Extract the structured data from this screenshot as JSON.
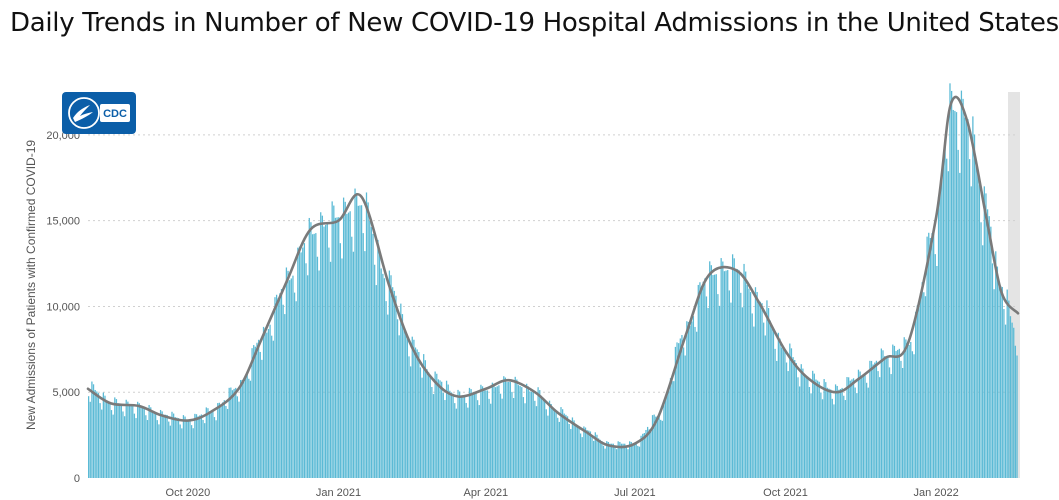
{
  "page": {
    "title": "Daily Trends in Number of New COVID-19 Hospital Admissions in the United States",
    "logo_text": "CDC"
  },
  "colors": {
    "bars": "#5bbad5",
    "line": "#7a7a7a",
    "grid": "#d0d0d0",
    "axis_text": "#555555",
    "logo_blue": "#0b5ea8",
    "right_band": "#e4e4e4"
  },
  "chart_data": {
    "type": "bar",
    "title": "Daily Trends in Number of New COVID-19 Hospital Admissions in the United States",
    "xlabel": "",
    "ylabel": "New Admissions of Patients with Confirmed COVID-19",
    "ylim": [
      0,
      22500
    ],
    "grid": true,
    "x_range": [
      "2020-08-01",
      "2022-02-20"
    ],
    "y_ticks": [
      0,
      5000,
      10000,
      15000,
      20000
    ],
    "y_tick_labels": [
      "0",
      "5,000",
      "10,000",
      "15,000",
      "20,000"
    ],
    "x_ticks": [
      {
        "date": "2020-10-01",
        "label": "Oct 2020"
      },
      {
        "date": "2021-01-01",
        "label": "Jan 2021"
      },
      {
        "date": "2021-04-01",
        "label": "Apr 2021"
      },
      {
        "date": "2021-07-01",
        "label": "Jul 2021"
      },
      {
        "date": "2021-10-01",
        "label": "Oct 2021"
      },
      {
        "date": "2022-01-01",
        "label": "Jan 2022"
      }
    ],
    "series": [
      {
        "type": "bar",
        "values_note_start_date": "",
        "points": [
          [
            "2020-08-01",
            5300
          ],
          [
            "2020-08-15",
            4400
          ],
          [
            "2020-09-01",
            4150
          ],
          [
            "2020-09-15",
            3700
          ],
          [
            "2020-10-01",
            3400
          ],
          [
            "2020-10-15",
            3900
          ],
          [
            "2020-11-01",
            5300
          ],
          [
            "2020-11-15",
            8200
          ],
          [
            "2020-12-01",
            11500
          ],
          [
            "2020-12-15",
            14200
          ],
          [
            "2021-01-01",
            15200
          ],
          [
            "2021-01-15",
            15900
          ],
          [
            "2021-02-01",
            11300
          ],
          [
            "2021-02-15",
            7700
          ],
          [
            "2021-03-01",
            5800
          ],
          [
            "2021-03-15",
            4800
          ],
          [
            "2021-04-01",
            5100
          ],
          [
            "2021-04-15",
            5600
          ],
          [
            "2021-05-01",
            5000
          ],
          [
            "2021-05-15",
            3900
          ],
          [
            "2021-06-01",
            2800
          ],
          [
            "2021-06-15",
            2000
          ],
          [
            "2021-07-01",
            2000
          ],
          [
            "2021-07-15",
            3600
          ],
          [
            "2021-08-01",
            8500
          ],
          [
            "2021-08-15",
            11800
          ],
          [
            "2021-09-01",
            12200
          ],
          [
            "2021-09-15",
            10300
          ],
          [
            "2021-10-01",
            7500
          ],
          [
            "2021-10-15",
            5900
          ],
          [
            "2021-11-01",
            5100
          ],
          [
            "2021-11-15",
            5900
          ],
          [
            "2021-12-01",
            7100
          ],
          [
            "2021-12-15",
            7700
          ],
          [
            "2022-01-01",
            14500
          ],
          [
            "2022-01-10",
            21500
          ],
          [
            "2022-01-20",
            21000
          ],
          [
            "2022-02-01",
            15800
          ],
          [
            "2022-02-10",
            11200
          ],
          [
            "2022-02-20",
            8500
          ]
        ]
      },
      {
        "type": "line",
        "points": [
          [
            "2020-08-01",
            5200
          ],
          [
            "2020-08-15",
            4350
          ],
          [
            "2020-09-01",
            4200
          ],
          [
            "2020-09-15",
            3650
          ],
          [
            "2020-10-01",
            3350
          ],
          [
            "2020-10-15",
            3850
          ],
          [
            "2020-11-01",
            5200
          ],
          [
            "2020-11-15",
            8100
          ],
          [
            "2020-12-01",
            11600
          ],
          [
            "2020-12-15",
            14500
          ],
          [
            "2021-01-01",
            15000
          ],
          [
            "2021-01-15",
            16400
          ],
          [
            "2021-02-01",
            11200
          ],
          [
            "2021-02-15",
            7600
          ],
          [
            "2021-03-01",
            5600
          ],
          [
            "2021-03-15",
            4750
          ],
          [
            "2021-04-01",
            5200
          ],
          [
            "2021-04-15",
            5700
          ],
          [
            "2021-05-01",
            5000
          ],
          [
            "2021-05-15",
            3800
          ],
          [
            "2021-06-01",
            2700
          ],
          [
            "2021-06-15",
            1900
          ],
          [
            "2021-07-01",
            2000
          ],
          [
            "2021-07-15",
            3500
          ],
          [
            "2021-08-01",
            8300
          ],
          [
            "2021-08-15",
            11800
          ],
          [
            "2021-09-01",
            12100
          ],
          [
            "2021-09-15",
            10200
          ],
          [
            "2021-10-01",
            7400
          ],
          [
            "2021-10-15",
            5800
          ],
          [
            "2021-11-01",
            5000
          ],
          [
            "2021-11-15",
            5800
          ],
          [
            "2021-12-01",
            7000
          ],
          [
            "2021-12-15",
            7900
          ],
          [
            "2022-01-01",
            15200
          ],
          [
            "2022-01-10",
            21800
          ],
          [
            "2022-01-20",
            20800
          ],
          [
            "2022-02-01",
            15000
          ],
          [
            "2022-02-10",
            10800
          ],
          [
            "2022-02-20",
            9600
          ]
        ]
      }
    ]
  }
}
